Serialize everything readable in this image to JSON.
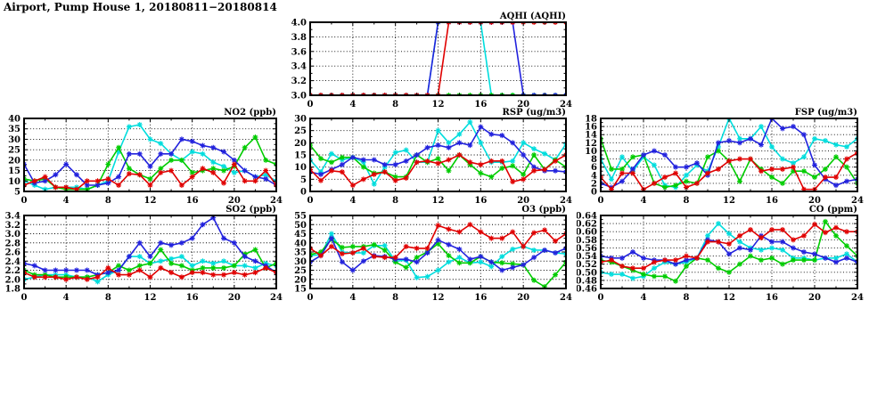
{
  "page_title": "Airport, Pump House 1, 20180811−20180814",
  "colors": {
    "red": "#e00000",
    "blue": "#2222dd",
    "green": "#00cc00",
    "cyan": "#00dddd",
    "axis": "#000000",
    "background": "#ffffff"
  },
  "x_hours": [
    0,
    1,
    2,
    3,
    4,
    5,
    6,
    7,
    8,
    9,
    10,
    11,
    12,
    13,
    14,
    15,
    16,
    17,
    18,
    19,
    20,
    21,
    22,
    23,
    24
  ],
  "x_tick_labels": [
    "0",
    "4",
    "8",
    "12",
    "16",
    "20",
    "24"
  ],
  "chart_data": [
    {
      "id": "aqhi",
      "type": "line",
      "title": "AQHI (AQHI)",
      "xlabel": "",
      "ylabel": "",
      "x_range": [
        0,
        24
      ],
      "x_tick_step": 4,
      "y_min": 3.0,
      "y_max": 4.0,
      "y_step": 0.2,
      "y_decimals": 1,
      "grid": "dotted",
      "series": [
        {
          "name": "cyan",
          "color": "#00dddd",
          "values": [
            3,
            3,
            3,
            3,
            3,
            3,
            3,
            3,
            3,
            3,
            3,
            3,
            4,
            4,
            4,
            4,
            4,
            3,
            3,
            3,
            3,
            3,
            3,
            3,
            3
          ]
        },
        {
          "name": "green",
          "color": "#00cc00",
          "values": [
            3,
            3,
            3,
            3,
            3,
            3,
            3,
            3,
            3,
            3,
            3,
            3,
            3,
            3,
            3,
            3,
            3,
            3,
            3,
            3,
            3,
            3,
            3,
            3,
            3
          ]
        },
        {
          "name": "blue",
          "color": "#2222dd",
          "values": [
            3,
            3,
            3,
            3,
            3,
            3,
            3,
            3,
            3,
            3,
            3,
            3,
            4,
            4,
            4,
            4,
            4,
            4,
            4,
            4,
            3,
            3,
            3,
            3,
            3
          ]
        },
        {
          "name": "red",
          "color": "#e00000",
          "values": [
            3,
            3,
            3,
            3,
            3,
            3,
            3,
            3,
            3,
            3,
            3,
            3,
            3,
            4,
            4,
            4,
            4,
            4,
            4,
            4,
            4,
            4,
            4,
            4,
            4
          ]
        }
      ]
    },
    {
      "id": "no2",
      "type": "line",
      "title": "NO2 (ppb)",
      "xlabel": "",
      "ylabel": "",
      "x_range": [
        0,
        24
      ],
      "x_tick_step": 4,
      "y_min": 5,
      "y_max": 40,
      "y_step": 5,
      "y_decimals": 0,
      "grid": "dotted",
      "series": [
        {
          "name": "cyan",
          "color": "#00dddd",
          "values": [
            10,
            8,
            6,
            7,
            7,
            7,
            6,
            8,
            10,
            24,
            36,
            37,
            30,
            28,
            23,
            20,
            24,
            23,
            19,
            17,
            14,
            15,
            12,
            13,
            10
          ]
        },
        {
          "name": "green",
          "color": "#00cc00",
          "values": [
            11,
            10,
            11,
            7,
            6,
            6,
            6,
            8,
            18,
            26,
            16,
            13,
            11,
            16,
            20,
            20,
            14,
            15,
            16,
            15,
            17,
            26,
            31,
            20,
            18
          ]
        },
        {
          "name": "blue",
          "color": "#2222dd",
          "values": [
            18,
            9,
            10,
            13,
            18,
            13,
            8,
            8,
            9,
            12,
            23,
            23,
            17,
            23,
            23,
            30,
            29,
            27,
            26,
            24,
            20,
            15,
            12,
            11,
            8
          ]
        },
        {
          "name": "red",
          "color": "#e00000",
          "values": [
            8,
            10,
            12,
            7,
            7,
            6,
            10,
            10,
            11,
            8,
            13.5,
            13,
            8,
            14,
            15,
            8,
            12,
            16,
            14,
            9,
            18,
            10,
            10,
            15,
            8
          ]
        }
      ]
    },
    {
      "id": "rsp",
      "type": "line",
      "title": "RSP (ug/m3)",
      "xlabel": "",
      "ylabel": "",
      "x_range": [
        0,
        24
      ],
      "x_tick_step": 4,
      "y_min": 0,
      "y_max": 30,
      "y_step": 5,
      "y_decimals": 0,
      "grid": "dotted",
      "series": [
        {
          "name": "cyan",
          "color": "#00dddd",
          "values": [
            13,
            8,
            15.5,
            13,
            14,
            12,
            3,
            10,
            16,
            17,
            12,
            12,
            25,
            20,
            23.5,
            28.5,
            20,
            12,
            12,
            12.5,
            20,
            17.5,
            15.5,
            13,
            19.5
          ]
        },
        {
          "name": "green",
          "color": "#00cc00",
          "values": [
            19,
            13.5,
            12,
            14,
            14,
            10,
            7.5,
            8,
            6,
            6,
            15,
            12,
            13.5,
            8.5,
            15,
            11,
            7.5,
            6,
            9.5,
            10.5,
            7,
            15,
            9,
            13,
            10
          ]
        },
        {
          "name": "blue",
          "color": "#2222dd",
          "values": [
            8,
            7,
            9,
            11,
            14,
            13,
            13,
            11,
            11,
            12.5,
            15,
            18,
            19,
            18,
            20,
            19,
            26.5,
            23.5,
            23,
            20,
            15,
            10,
            8.5,
            8.5,
            8
          ]
        },
        {
          "name": "red",
          "color": "#e00000",
          "values": [
            9,
            4.5,
            8.5,
            8,
            2.5,
            5,
            7,
            8,
            4.5,
            5.5,
            12,
            12.5,
            11.5,
            13,
            15,
            12,
            11,
            12.5,
            12.5,
            4,
            5,
            8.5,
            9,
            12.5,
            15
          ]
        }
      ]
    },
    {
      "id": "fsp",
      "type": "line",
      "title": "FSP (ug/m3)",
      "xlabel": "",
      "ylabel": "",
      "x_range": [
        0,
        24
      ],
      "x_tick_step": 4,
      "y_min": 0,
      "y_max": 18,
      "y_step": 2,
      "y_decimals": 0,
      "grid": "dotted",
      "series": [
        {
          "name": "cyan",
          "color": "#00dddd",
          "values": [
            8,
            3,
            8.5,
            5,
            8.5,
            6.5,
            1.5,
            1,
            4,
            6.5,
            5,
            11,
            18,
            13,
            13,
            16,
            11,
            8,
            7,
            8.5,
            13,
            12.5,
            11.5,
            11,
            13
          ]
        },
        {
          "name": "green",
          "color": "#00cc00",
          "values": [
            13,
            5.5,
            5.5,
            8.5,
            9,
            2,
            1,
            1.5,
            2.5,
            2,
            8.5,
            10,
            7.5,
            2.5,
            8,
            5.5,
            3.5,
            2,
            5,
            5,
            3.5,
            5.5,
            8.5,
            6,
            2
          ]
        },
        {
          "name": "blue",
          "color": "#2222dd",
          "values": [
            2,
            1,
            2.5,
            5.5,
            9,
            10,
            9,
            6,
            6,
            7,
            4,
            12,
            12.5,
            12,
            13,
            11.5,
            18,
            15.5,
            16,
            14,
            6.5,
            3,
            1.5,
            2.5,
            3
          ]
        },
        {
          "name": "red",
          "color": "#e00000",
          "values": [
            3.5,
            0.5,
            4.5,
            4.5,
            0.5,
            2,
            3.5,
            4.5,
            1,
            2,
            4.5,
            5.5,
            7.5,
            8,
            8,
            5,
            5.5,
            5.5,
            6,
            0.5,
            0.5,
            3.5,
            3.5,
            8,
            9.5
          ]
        }
      ]
    },
    {
      "id": "so2",
      "type": "line",
      "title": "SO2 (ppb)",
      "xlabel": "",
      "ylabel": "",
      "x_range": [
        0,
        24
      ],
      "x_tick_step": 4,
      "y_min": 1.8,
      "y_max": 3.4,
      "y_step": 0.2,
      "y_decimals": 1,
      "grid": "dotted",
      "series": [
        {
          "name": "cyan",
          "color": "#00dddd",
          "values": [
            2.0,
            2.05,
            2.1,
            2.1,
            2.1,
            2.05,
            2.05,
            1.95,
            2.1,
            2.2,
            2.5,
            2.5,
            2.35,
            2.4,
            2.45,
            2.5,
            2.3,
            2.4,
            2.35,
            2.4,
            2.3,
            2.3,
            2.25,
            2.35,
            2.3
          ]
        },
        {
          "name": "green",
          "color": "#00cc00",
          "values": [
            2.2,
            2.1,
            2.1,
            2.05,
            2.05,
            2.05,
            2.05,
            2.1,
            2.15,
            2.3,
            2.2,
            2.3,
            2.35,
            2.65,
            2.35,
            2.3,
            2.2,
            2.25,
            2.25,
            2.25,
            2.3,
            2.55,
            2.65,
            2.25,
            2.35
          ]
        },
        {
          "name": "blue",
          "color": "#2222dd",
          "values": [
            2.35,
            2.3,
            2.2,
            2.2,
            2.2,
            2.2,
            2.2,
            2.1,
            2.15,
            2.2,
            2.5,
            2.8,
            2.5,
            2.8,
            2.75,
            2.8,
            2.9,
            3.2,
            3.35,
            2.9,
            2.8,
            2.5,
            2.4,
            2.3,
            2.15
          ]
        },
        {
          "name": "red",
          "color": "#e00000",
          "values": [
            2.15,
            2.05,
            2.05,
            2.05,
            2.0,
            2.05,
            2.0,
            2.05,
            2.25,
            2.1,
            2.1,
            2.2,
            2.05,
            2.25,
            2.15,
            2.05,
            2.15,
            2.15,
            2.1,
            2.1,
            2.15,
            2.1,
            2.15,
            2.25,
            2.15
          ]
        }
      ]
    },
    {
      "id": "o3",
      "type": "line",
      "title": "O3 (ppb)",
      "xlabel": "",
      "ylabel": "",
      "x_range": [
        0,
        24
      ],
      "x_tick_step": 4,
      "y_min": 15,
      "y_max": 55,
      "y_step": 5,
      "y_decimals": 0,
      "grid": "dotted",
      "series": [
        {
          "name": "cyan",
          "color": "#00dddd",
          "values": [
            33,
            33.5,
            45,
            35,
            34.5,
            34.5,
            38.5,
            38.5,
            30,
            30.5,
            21,
            21.5,
            25,
            29.5,
            32,
            29,
            29.5,
            27,
            32.5,
            36.5,
            38,
            36,
            36,
            34.5,
            34
          ]
        },
        {
          "name": "green",
          "color": "#00cc00",
          "values": [
            33.5,
            35,
            42,
            37.5,
            38,
            38,
            39,
            36,
            29.5,
            26.5,
            32,
            35,
            39.5,
            33,
            29,
            29,
            32.5,
            29.5,
            29,
            28.5,
            28,
            19.5,
            16,
            22.5,
            29.5
          ]
        },
        {
          "name": "blue",
          "color": "#2222dd",
          "values": [
            29.5,
            33,
            42.5,
            29.5,
            25,
            30,
            33,
            32.5,
            31,
            31,
            29.5,
            34.5,
            41.5,
            39,
            36.5,
            31,
            32.5,
            29.5,
            25,
            26.5,
            28,
            32,
            36,
            34.5,
            37
          ]
        },
        {
          "name": "red",
          "color": "#e00000",
          "values": [
            37,
            33,
            38,
            34,
            34.5,
            37,
            32.5,
            32,
            32,
            38,
            37,
            37,
            49.5,
            47.5,
            46,
            50,
            46,
            42.5,
            42.5,
            46,
            38,
            45.5,
            47,
            41,
            45
          ]
        }
      ]
    },
    {
      "id": "co",
      "type": "line",
      "title": "CO (ppm)",
      "xlabel": "",
      "ylabel": "",
      "x_range": [
        0,
        24
      ],
      "x_tick_step": 4,
      "y_min": 0.46,
      "y_max": 0.64,
      "y_step": 0.02,
      "y_decimals": 2,
      "grid": "dotted",
      "series": [
        {
          "name": "cyan",
          "color": "#00dddd",
          "values": [
            0.5,
            0.495,
            0.495,
            0.485,
            0.49,
            0.51,
            0.525,
            0.52,
            0.525,
            0.535,
            0.59,
            0.62,
            0.595,
            0.575,
            0.56,
            0.555,
            0.56,
            0.555,
            0.535,
            0.535,
            0.53,
            0.535,
            0.535,
            0.545,
            0.525
          ]
        },
        {
          "name": "green",
          "color": "#00cc00",
          "values": [
            0.53,
            0.525,
            0.515,
            0.505,
            0.495,
            0.49,
            0.49,
            0.478,
            0.515,
            0.535,
            0.53,
            0.51,
            0.5,
            0.52,
            0.54,
            0.53,
            0.535,
            0.52,
            0.53,
            0.53,
            0.53,
            0.625,
            0.59,
            0.565,
            0.54
          ]
        },
        {
          "name": "blue",
          "color": "#2222dd",
          "values": [
            0.54,
            0.535,
            0.535,
            0.55,
            0.535,
            0.53,
            0.53,
            0.52,
            0.53,
            0.535,
            0.58,
            0.575,
            0.545,
            0.56,
            0.555,
            0.59,
            0.575,
            0.575,
            0.56,
            0.55,
            0.545,
            0.535,
            0.525,
            0.535,
            0.525
          ]
        },
        {
          "name": "red",
          "color": "#e00000",
          "values": [
            0.525,
            0.53,
            0.515,
            0.51,
            0.51,
            0.525,
            0.53,
            0.53,
            0.54,
            0.535,
            0.575,
            0.575,
            0.57,
            0.59,
            0.605,
            0.585,
            0.605,
            0.605,
            0.58,
            0.59,
            0.618,
            0.598,
            0.61,
            0.6,
            0.6
          ]
        }
      ]
    }
  ]
}
